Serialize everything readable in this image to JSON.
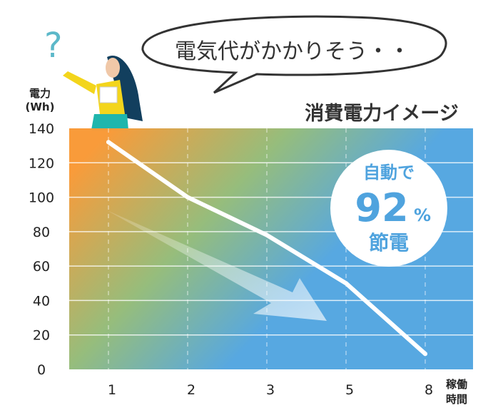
{
  "speech_bubble": "電気代がかかりそう・・",
  "chart_data": {
    "type": "line",
    "title": "消費電力イメージ",
    "ylabel": [
      "電力",
      "(Wh)"
    ],
    "xlabel": [
      "稼働",
      "時間"
    ],
    "categories": [
      "1",
      "2",
      "3",
      "5",
      "8"
    ],
    "values": [
      132,
      100,
      78,
      50,
      9
    ],
    "ylim": [
      0,
      140
    ],
    "yticks": [
      0,
      20,
      40,
      60,
      80,
      100,
      120,
      140
    ],
    "grid": true,
    "annotation": {
      "line1": "自動で",
      "big": "92",
      "unit": "%",
      "line3": "節電"
    },
    "colors": {
      "orange": "#F99B3A",
      "green": "#96BD7C",
      "blue": "#57A8E1",
      "badge_text": "#4FA3DE"
    }
  }
}
